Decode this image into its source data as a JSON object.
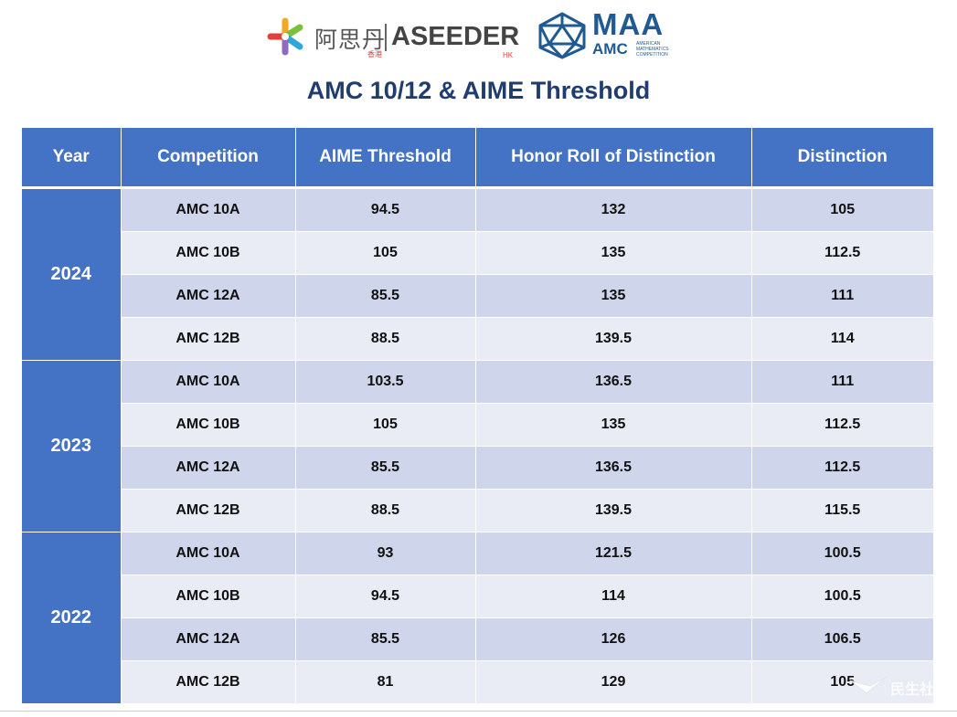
{
  "logos": {
    "aseeder_cn": "阿思丹",
    "aseeder_cn_sub": "香港",
    "aseeder_en": "ASEEDER",
    "aseeder_en_sub": "HK",
    "maa": "MAA",
    "amc": "AMC",
    "amc_sub": "AMERICAN MATHEMATICS COMPETITION"
  },
  "title": "AMC 10/12 & AIME Threshold",
  "table": {
    "headers": [
      "Year",
      "Competition",
      "AIME Threshold",
      "Honor Roll of Distinction",
      "Distinction"
    ],
    "groups": [
      {
        "year": "2024",
        "rows": [
          [
            "AMC 10A",
            "94.5",
            "132",
            "105"
          ],
          [
            "AMC 10B",
            "105",
            "135",
            "112.5"
          ],
          [
            "AMC 12A",
            "85.5",
            "135",
            "111"
          ],
          [
            "AMC 12B",
            "88.5",
            "139.5",
            "114"
          ]
        ]
      },
      {
        "year": "2023",
        "rows": [
          [
            "AMC 10A",
            "103.5",
            "136.5",
            "111"
          ],
          [
            "AMC 10B",
            "105",
            "135",
            "112.5"
          ],
          [
            "AMC 12A",
            "85.5",
            "136.5",
            "112.5"
          ],
          [
            "AMC 12B",
            "88.5",
            "139.5",
            "115.5"
          ]
        ]
      },
      {
        "year": "2022",
        "rows": [
          [
            "AMC 10A",
            "93",
            "121.5",
            "100.5"
          ],
          [
            "AMC 10B",
            "94.5",
            "114",
            "100.5"
          ],
          [
            "AMC 12A",
            "85.5",
            "126",
            "106.5"
          ],
          [
            "AMC 12B",
            "81",
            "129",
            "105"
          ]
        ]
      }
    ]
  },
  "watermark": "民生社",
  "colors": {
    "header_blue": "#4472c4",
    "row_dark": "#cfd5ea",
    "row_light": "#e9ebf5",
    "title_navy": "#1f3d6e",
    "maa_blue": "#1f5a92"
  }
}
